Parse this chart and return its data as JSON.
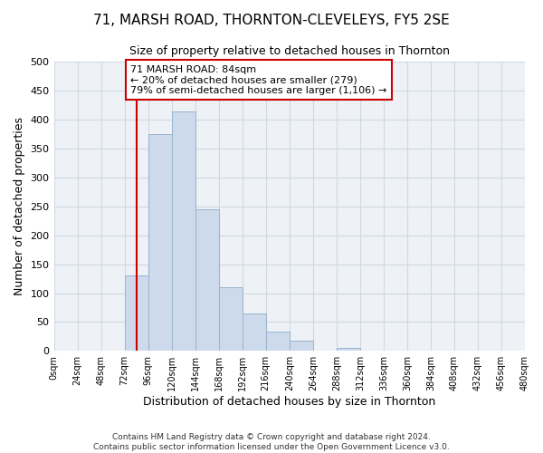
{
  "title": "71, MARSH ROAD, THORNTON-CLEVELEYS, FY5 2SE",
  "subtitle": "Size of property relative to detached houses in Thornton",
  "xlabel": "Distribution of detached houses by size in Thornton",
  "ylabel": "Number of detached properties",
  "bin_starts": [
    0,
    24,
    48,
    72,
    96,
    120,
    144,
    168,
    192,
    216,
    240,
    264,
    288,
    312,
    336,
    360,
    384,
    408,
    432,
    456
  ],
  "bar_heights": [
    0,
    0,
    0,
    130,
    375,
    415,
    245,
    110,
    65,
    33,
    17,
    0,
    6,
    0,
    0,
    0,
    0,
    0,
    0,
    0
  ],
  "bar_color": "#ccdaeb",
  "bar_edge_color": "#9ab3cc",
  "property_line_x": 84,
  "property_line_color": "#cc0000",
  "annotation_line1": "71 MARSH ROAD: 84sqm",
  "annotation_line2": "← 20% of detached houses are smaller (279)",
  "annotation_line3": "79% of semi-detached houses are larger (1,106) →",
  "annotation_box_color": "#cc0000",
  "ylim": [
    0,
    500
  ],
  "xlim": [
    0,
    480
  ],
  "tick_labels": [
    "0sqm",
    "24sqm",
    "48sqm",
    "72sqm",
    "96sqm",
    "120sqm",
    "144sqm",
    "168sqm",
    "192sqm",
    "216sqm",
    "240sqm",
    "264sqm",
    "288sqm",
    "312sqm",
    "336sqm",
    "360sqm",
    "384sqm",
    "408sqm",
    "432sqm",
    "456sqm",
    "480sqm"
  ],
  "footer_line1": "Contains HM Land Registry data © Crown copyright and database right 2024.",
  "footer_line2": "Contains public sector information licensed under the Open Government Licence v3.0.",
  "grid_color": "#d0d8e4",
  "background_color": "#eef2f7"
}
